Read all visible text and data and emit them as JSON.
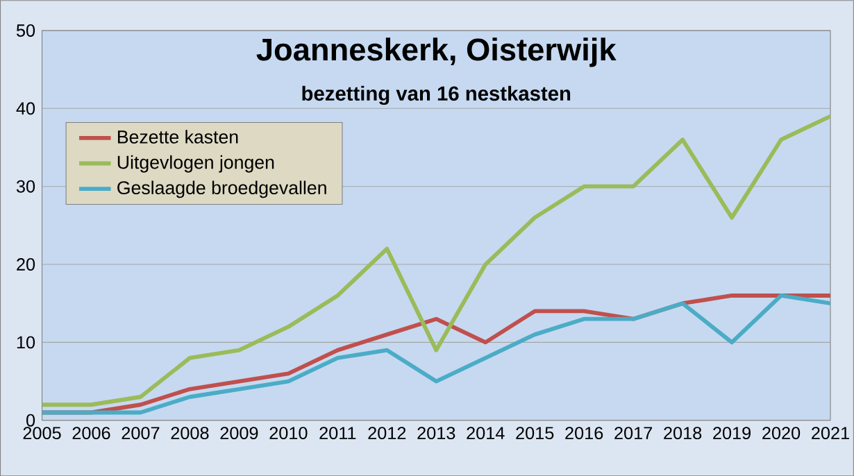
{
  "chart_data": {
    "type": "line",
    "title": "Joanneskerk, Oisterwijk",
    "subtitle": "bezetting van 16 nestkasten",
    "x": [
      2005,
      2006,
      2007,
      2008,
      2009,
      2010,
      2011,
      2012,
      2013,
      2014,
      2015,
      2016,
      2017,
      2018,
      2019,
      2020,
      2021
    ],
    "series": [
      {
        "name": "Bezette kasten",
        "color": "#c0504d",
        "values": [
          1,
          1,
          2,
          4,
          5,
          6,
          9,
          11,
          13,
          10,
          14,
          14,
          13,
          15,
          16,
          16,
          16
        ]
      },
      {
        "name": "Uitgevlogen jongen",
        "color": "#9bbb59",
        "values": [
          2,
          2,
          3,
          8,
          9,
          12,
          16,
          22,
          9,
          20,
          26,
          30,
          30,
          36,
          26,
          36,
          39
        ]
      },
      {
        "name": "Geslaagde broedgevallen",
        "color": "#4bacc6",
        "values": [
          1,
          1,
          1,
          3,
          4,
          5,
          8,
          9,
          5,
          8,
          11,
          13,
          13,
          15,
          10,
          16,
          15
        ]
      }
    ],
    "xlim": [
      2005,
      2021
    ],
    "xticks": [
      2005,
      2006,
      2007,
      2008,
      2009,
      2010,
      2011,
      2012,
      2013,
      2014,
      2015,
      2016,
      2017,
      2018,
      2019,
      2020,
      2021
    ],
    "ylim": [
      0,
      50
    ],
    "yticks": [
      0,
      10,
      20,
      30,
      40,
      50
    ],
    "grid": "y",
    "legend": "top left",
    "marker": "none",
    "line_style": "solid"
  }
}
